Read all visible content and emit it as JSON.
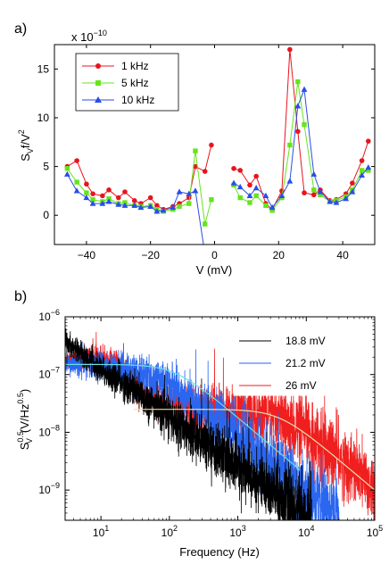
{
  "chart_data": [
    {
      "panel_label": "a)",
      "type": "line",
      "exponent_label": "x 10",
      "exponent_power": "−10",
      "xlabel": "V (mV)",
      "ylabel_main": "S",
      "ylabel_sub": "V",
      "ylabel_rest": "f/V",
      "ylabel_sup": "2",
      "xlim": [
        -50,
        50
      ],
      "ylim": [
        -3,
        17.5
      ],
      "xticks": [
        -40,
        -20,
        0,
        20,
        40
      ],
      "xtick_labels": [
        "−40",
        "−20",
        "0",
        "20",
        "40"
      ],
      "yticks": [
        0,
        5,
        10,
        15
      ],
      "ytick_labels": [
        "0",
        "5",
        "10",
        "15"
      ],
      "grid": false,
      "legend_position": "top-left",
      "series": [
        {
          "name": "1 kHz",
          "color": "#e8141e",
          "marker": "circle",
          "segments": [
            {
              "x": [
                -46,
                -43,
                -40,
                -38,
                -35,
                -33,
                -30,
                -28,
                -25,
                -23,
                -20,
                -18,
                -16,
                -13,
                -11,
                -8,
                -6,
                -3,
                -1
              ],
              "y": [
                5.0,
                5.6,
                3.2,
                2.2,
                2.0,
                2.6,
                1.8,
                2.4,
                1.5,
                1.2,
                1.8,
                1.0,
                0.6,
                0.9,
                1.2,
                1.8,
                5.0,
                4.5,
                7.2
              ]
            },
            {
              "x": [
                6,
                8,
                11,
                13,
                16,
                18,
                21,
                23.5,
                26,
                28,
                31,
                33,
                36,
                38,
                41,
                43,
                46,
                48
              ],
              "y": [
                4.8,
                4.6,
                3.1,
                4.0,
                1.2,
                0.6,
                2.5,
                17.0,
                8.6,
                2.3,
                2.1,
                2.6,
                1.5,
                1.6,
                2.2,
                3.3,
                5.6,
                7.6
              ]
            }
          ]
        },
        {
          "name": "5 kHz",
          "color": "#66e41c",
          "marker": "square",
          "segments": [
            {
              "x": [
                -46,
                -43,
                -40,
                -38,
                -35,
                -33,
                -30,
                -28,
                -25,
                -23,
                -20,
                -18,
                -16,
                -13,
                -11,
                -8,
                -6,
                -3,
                -1
              ],
              "y": [
                4.8,
                3.4,
                2.3,
                1.6,
                1.4,
                1.7,
                1.2,
                1.3,
                1.0,
                0.9,
                1.0,
                0.6,
                0.4,
                0.6,
                0.9,
                1.2,
                6.6,
                -0.9,
                1.6
              ]
            },
            {
              "x": [
                6,
                8,
                11,
                13,
                16,
                18,
                21,
                23.5,
                26,
                28,
                31,
                33,
                36,
                38,
                41,
                43,
                46,
                48
              ],
              "y": [
                3.1,
                1.8,
                1.3,
                2.0,
                1.0,
                0.5,
                1.8,
                7.2,
                13.7,
                9.3,
                2.6,
                2.1,
                1.4,
                1.5,
                1.9,
                2.6,
                4.6,
                4.6
              ]
            }
          ]
        },
        {
          "name": "10 kHz",
          "color": "#2a4de8",
          "marker": "triangle",
          "segments": [
            {
              "x": [
                -46,
                -43,
                -40,
                -38,
                -35,
                -33,
                -30,
                -28,
                -25,
                -23,
                -20,
                -18,
                -16,
                -13,
                -11,
                -8,
                -6,
                -3,
                -1
              ],
              "y": [
                4.2,
                2.5,
                1.8,
                1.2,
                1.2,
                1.4,
                1.1,
                1.0,
                1.0,
                0.8,
                0.9,
                0.4,
                0.5,
                0.8,
                2.4,
                2.2,
                2.5,
                -4.0,
                -4.0
              ]
            },
            {
              "x": [
                6,
                8,
                11,
                13,
                16,
                18,
                21,
                23.5,
                26,
                28,
                31,
                33,
                36,
                38,
                41,
                43,
                46,
                48
              ],
              "y": [
                3.3,
                2.9,
                2.0,
                2.8,
                2.0,
                0.8,
                2.0,
                3.5,
                11.2,
                12.9,
                4.2,
                2.4,
                1.4,
                1.3,
                1.7,
                2.4,
                4.1,
                4.9
              ]
            }
          ]
        }
      ]
    },
    {
      "panel_label": "b)",
      "type": "line",
      "xlabel": "Frequency (Hz)",
      "ylabel_main": "S",
      "ylabel_sup1": "0.5",
      "ylabel_sub": "V",
      "ylabel_rest": "(V/Hz",
      "ylabel_sup2": "0.5",
      "ylabel_close": ")",
      "xscale": "log",
      "yscale": "log",
      "xlim": [
        3,
        100000
      ],
      "ylim": [
        3e-10,
        1e-06
      ],
      "xtick_base": "10",
      "xtick_exps": [
        "1",
        "2",
        "3",
        "4",
        "5"
      ],
      "ytick_base": "10",
      "ytick_exps": [
        "−9",
        "−8",
        "−7",
        "−6"
      ],
      "grid": false,
      "legend_position": "top-right",
      "series": [
        {
          "name": "18.8 mV",
          "color": "#000000",
          "f_start": 3,
          "f_end": 12000,
          "anchors": [
            [
              3,
              4e-07
            ],
            [
              10,
              1.2e-07
            ],
            [
              30,
              5.5e-08
            ],
            [
              100,
              1.8e-08
            ],
            [
              300,
              7e-09
            ],
            [
              1000,
              2.5e-09
            ],
            [
              3000,
              1e-09
            ],
            [
              12000,
              3e-10
            ]
          ],
          "fit": null
        },
        {
          "name": "21.2 mV",
          "color": "#2a66f0",
          "f_start": 3,
          "f_end": 30000,
          "anchors": [
            [
              3,
              1.5e-07
            ],
            [
              10,
              1.5e-07
            ],
            [
              30,
              1.1e-07
            ],
            [
              100,
              7e-08
            ],
            [
              300,
              2.5e-08
            ],
            [
              1000,
              9e-09
            ],
            [
              3000,
              3e-09
            ],
            [
              10000,
              1e-09
            ],
            [
              30000,
              4e-10
            ]
          ],
          "fit": {
            "color": "#66e0e0",
            "type": "lorentz",
            "A": 1.5e-07,
            "fc": 120,
            "f_start": 3,
            "f_end": 8000
          }
        },
        {
          "name": "26 mV",
          "color": "#f01e1e",
          "f_start": 3,
          "f_end": 100000,
          "anchors": [
            [
              3,
              1.8e-07
            ],
            [
              10,
              2e-07
            ],
            [
              20,
              1.3e-07
            ],
            [
              50,
              4e-08
            ],
            [
              100,
              2.8e-08
            ],
            [
              300,
              2.4e-08
            ],
            [
              1000,
              2.3e-08
            ],
            [
              3000,
              1.9e-08
            ],
            [
              10000,
              1e-08
            ],
            [
              30000,
              3.5e-09
            ],
            [
              100000,
              1.1e-09
            ]
          ],
          "fit": {
            "color": "#e8e0a8",
            "type": "lorentz_floor",
            "A": 2.5e-08,
            "fc": 4000,
            "f_start": 30,
            "f_end": 100000
          }
        }
      ]
    }
  ]
}
